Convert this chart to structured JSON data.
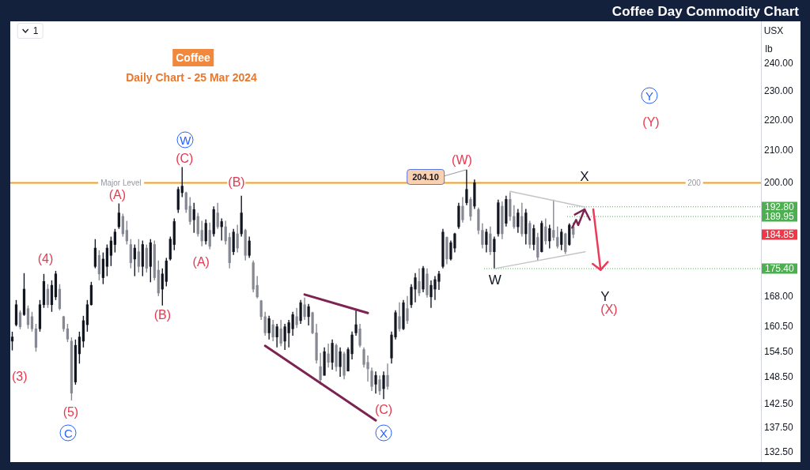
{
  "chart_data": {
    "type": "candlestick",
    "title": "Coffee Day Commodity Chart",
    "subtitle": "Daily Chart - 25 Mar 2024",
    "annotations": [
      "Coffee",
      "(3)",
      {
        "text": "(4)",
        "y": 174
      },
      {
        "text": "(5)",
        "y": 143.4
      },
      {
        "text": "C",
        "y": 143.4
      },
      {
        "text": "(A)",
        "y": 193.8
      },
      {
        "text": "(B)",
        "y": 165.8
      },
      {
        "text": "(C)",
        "y": 204.9
      },
      {
        "text": "W",
        "y": 204.9
      },
      {
        "text": "(A)",
        "y": 180.7
      },
      "(B)",
      {
        "text": "(C)",
        "y": 143.7
      },
      {
        "text": "X",
        "y": 143.7
      },
      "(W)",
      "204.10",
      {
        "text": "W",
        "y": 175.4
      },
      "X",
      "Y",
      "(X)",
      "Y",
      "(Y)",
      {
        "text": "200",
        "y": 200
      },
      "184.85",
      "USX",
      "lb",
      "1"
    ],
    "categories": [
      null,
      null,
      null,
      null,
      null,
      null,
      null,
      null,
      null,
      null,
      null,
      null,
      null,
      null,
      null,
      null,
      null,
      null,
      null,
      null,
      null,
      null,
      null,
      null,
      null,
      null,
      null,
      null,
      null,
      null,
      null,
      null,
      null,
      null,
      null,
      null,
      null,
      null,
      null,
      null,
      null,
      null,
      null,
      null,
      null,
      null,
      null,
      null,
      null,
      null,
      null,
      null,
      null,
      null,
      null,
      null,
      null,
      null,
      null,
      null,
      null,
      null,
      null,
      null,
      null,
      null,
      null,
      null,
      null,
      null,
      null,
      null,
      null,
      null,
      null,
      null,
      null,
      null,
      null,
      null,
      null,
      null,
      null,
      null,
      null,
      null,
      null,
      null,
      null,
      null,
      null,
      null,
      null,
      null,
      null,
      null,
      null,
      null,
      null,
      null,
      null,
      null,
      null,
      null,
      null,
      null,
      null,
      null,
      null,
      null,
      null,
      null,
      null,
      null,
      null,
      null,
      null,
      null,
      null,
      null,
      null,
      null,
      null,
      null,
      null,
      null,
      null,
      null,
      null,
      null,
      null,
      null,
      null,
      null,
      null,
      null,
      null,
      null,
      null,
      null,
      null,
      null,
      null,
      null,
      null,
      null,
      null,
      null,
      null,
      null,
      null,
      null,
      null,
      null,
      null,
      null,
      null,
      null,
      null,
      null,
      null,
      null,
      null,
      null,
      null,
      null,
      null,
      null,
      null,
      null,
      null,
      null,
      null,
      null,
      null,
      null,
      null,
      null,
      null,
      null,
      null,
      null,
      null,
      null,
      null,
      null,
      null,
      null,
      null,
      null
    ],
    "ohlc": [
      [
        157,
        159.3,
        154.8,
        158
      ],
      [
        161,
        167.2,
        160.6,
        166
      ],
      [
        164,
        164.6,
        159.9,
        160.5
      ],
      [
        163.5,
        174.2,
        163.2,
        170
      ],
      [
        165,
        165.8,
        160,
        161
      ],
      [
        163,
        164.2,
        159.3,
        160
      ],
      [
        160,
        161.2,
        154.5,
        155.5
      ],
      [
        160,
        167.2,
        159.3,
        166
      ],
      [
        166,
        174,
        165.2,
        172
      ],
      [
        170,
        171.3,
        165.2,
        166
      ],
      [
        166,
        172.3,
        164.2,
        171
      ],
      [
        168,
        174.8,
        167.2,
        174
      ],
      [
        170,
        171.3,
        164.6,
        165
      ],
      [
        163,
        163.2,
        159.3,
        160
      ],
      [
        160,
        161.2,
        156.8,
        157.5
      ],
      [
        157,
        157.9,
        143.4,
        145
      ],
      [
        147.5,
        157.4,
        146.9,
        156
      ],
      [
        154,
        159.3,
        151.7,
        158
      ],
      [
        157,
        163.2,
        155.5,
        162
      ],
      [
        161,
        167.2,
        159.3,
        166
      ],
      [
        166,
        171.9,
        165.8,
        171
      ],
      [
        176,
        183.5,
        175.5,
        181
      ],
      [
        179,
        180.4,
        172.3,
        174
      ],
      [
        173,
        179.8,
        171.3,
        178
      ],
      [
        176,
        182,
        173.4,
        181
      ],
      [
        179,
        184.2,
        176.1,
        183
      ],
      [
        182,
        186.4,
        179.8,
        185.5
      ],
      [
        187,
        193.8,
        186.4,
        191
      ],
      [
        190,
        190.8,
        184.2,
        185
      ],
      [
        186,
        188.7,
        182,
        183
      ],
      [
        182,
        183.5,
        175.5,
        177
      ],
      [
        178,
        182,
        173.4,
        181
      ],
      [
        180,
        183.5,
        174.4,
        176
      ],
      [
        176,
        183.1,
        173.4,
        182
      ],
      [
        181,
        182,
        174.4,
        175.5
      ],
      [
        176,
        183.5,
        171.8,
        182.5
      ],
      [
        182,
        183.1,
        172.3,
        173
      ],
      [
        175,
        177.6,
        168.2,
        169
      ],
      [
        170,
        175.5,
        165.8,
        174
      ],
      [
        172,
        178.3,
        170.7,
        177.5
      ],
      [
        178,
        184.2,
        177.6,
        183.5
      ],
      [
        182,
        189.4,
        180.4,
        188.5
      ],
      [
        192,
        198.8,
        191,
        198
      ],
      [
        197,
        204.9,
        195.7,
        199
      ],
      [
        197,
        197.3,
        191,
        192
      ],
      [
        193,
        195.7,
        187.6,
        188.5
      ],
      [
        189,
        194,
        185.3,
        192
      ],
      [
        190,
        191,
        184.2,
        185
      ],
      [
        186,
        188.7,
        181.5,
        183
      ],
      [
        183,
        189.1,
        182,
        188
      ],
      [
        186,
        188.2,
        180.7,
        181.5
      ],
      [
        185,
        192.9,
        184.2,
        192
      ],
      [
        191,
        194,
        186.4,
        187
      ],
      [
        187,
        189.4,
        183.1,
        188.5
      ],
      [
        187,
        188.7,
        182,
        183
      ],
      [
        184,
        185.3,
        175.5,
        177
      ],
      [
        180,
        186.4,
        179.1,
        185.5
      ],
      [
        185,
        187.6,
        179.8,
        181
      ],
      [
        185,
        196.1,
        184.2,
        191
      ],
      [
        186,
        186.4,
        177.6,
        179
      ],
      [
        179,
        184.2,
        178.3,
        183
      ],
      [
        177,
        177.6,
        169.2,
        170
      ],
      [
        171,
        173.4,
        167.6,
        168
      ],
      [
        167,
        167.2,
        162.2,
        163
      ],
      [
        163,
        164.2,
        158.3,
        159
      ],
      [
        159,
        163.2,
        157.4,
        162.5
      ],
      [
        161,
        162.2,
        157,
        158
      ],
      [
        158,
        161.2,
        155.5,
        160.5
      ],
      [
        160,
        162.2,
        155.8,
        156.5
      ],
      [
        157,
        161.2,
        154.9,
        160.5
      ],
      [
        159,
        162.2,
        155.5,
        161.5
      ],
      [
        160,
        164.2,
        158.3,
        163.5
      ],
      [
        163,
        165.2,
        160.2,
        161
      ],
      [
        162,
        167.2,
        161.2,
        166.5
      ],
      [
        166,
        167.8,
        162.2,
        163
      ],
      [
        163,
        166.2,
        160.8,
        165.5
      ],
      [
        164,
        164.2,
        158.7,
        159
      ],
      [
        159,
        161.2,
        151.7,
        152.5
      ],
      [
        151,
        154.2,
        146.9,
        148
      ],
      [
        149,
        155.5,
        149,
        154.5
      ],
      [
        154,
        156.4,
        150.8,
        152
      ],
      [
        152,
        157.4,
        150.3,
        156.5
      ],
      [
        156,
        156.4,
        149.9,
        151
      ],
      [
        151,
        155.5,
        148.7,
        154.5
      ],
      [
        154,
        154.5,
        148.1,
        149
      ],
      [
        150,
        155.5,
        149.9,
        155
      ],
      [
        154,
        159.3,
        152.7,
        158.5
      ],
      [
        159,
        164.6,
        158.3,
        161
      ],
      [
        160,
        161.2,
        155.5,
        156
      ],
      [
        155,
        155.5,
        150.8,
        151.5
      ],
      [
        152,
        153.6,
        147.6,
        150.5
      ],
      [
        150,
        150.8,
        145.5,
        146.5
      ],
      [
        147,
        149.9,
        144.9,
        149
      ],
      [
        148,
        149,
        144.6,
        145.5
      ],
      [
        146,
        149.9,
        143.7,
        149
      ],
      [
        149,
        151.7,
        145.8,
        146.5
      ],
      [
        153,
        159.3,
        151.7,
        158.5
      ],
      [
        158,
        164.6,
        157.4,
        164
      ],
      [
        163,
        166.6,
        159.3,
        160
      ],
      [
        160,
        167.2,
        159.7,
        166.5
      ],
      [
        165,
        168.2,
        161.2,
        162
      ],
      [
        166,
        171.3,
        165.2,
        170.5
      ],
      [
        170,
        174.2,
        166.6,
        173
      ],
      [
        172,
        175.5,
        168.2,
        169
      ],
      [
        170,
        176.1,
        169.2,
        175.5
      ],
      [
        174,
        175.5,
        167.8,
        168.5
      ],
      [
        168,
        172.3,
        165.2,
        171
      ],
      [
        170,
        173.4,
        167.2,
        172.5
      ],
      [
        172,
        174.8,
        169.8,
        174
      ],
      [
        176,
        186.4,
        175.5,
        185.5
      ],
      [
        184,
        184.2,
        176.6,
        178
      ],
      [
        178,
        183.1,
        177.6,
        182.5
      ],
      [
        181,
        185.3,
        179.8,
        185
      ],
      [
        187,
        194,
        186.4,
        193
      ],
      [
        193,
        195.7,
        188.2,
        189
      ],
      [
        194,
        204.1,
        193.3,
        198
      ],
      [
        195,
        195.7,
        188.7,
        190
      ],
      [
        193,
        201,
        192.2,
        200
      ],
      [
        192,
        192.6,
        184.9,
        186
      ],
      [
        186,
        188,
        180.9,
        182
      ],
      [
        182,
        186.4,
        179.8,
        185.5
      ],
      [
        185,
        187.1,
        179.1,
        180
      ],
      [
        180,
        184.2,
        175.4,
        183.5
      ],
      [
        185,
        194.9,
        184.2,
        194
      ],
      [
        193,
        194.4,
        183.5,
        185
      ],
      [
        188,
        196.1,
        187.1,
        195
      ],
      [
        195,
        197.1,
        188.7,
        190
      ],
      [
        190,
        193.3,
        186.4,
        187
      ],
      [
        187,
        192.2,
        185.3,
        191
      ],
      [
        190,
        194,
        184.2,
        185
      ],
      [
        185,
        192.2,
        182,
        191
      ],
      [
        188,
        188.7,
        180.9,
        182
      ],
      [
        182,
        187.6,
        180.4,
        186.5
      ],
      [
        184,
        185.3,
        177.6,
        178.5
      ],
      [
        180,
        188.7,
        179.8,
        188
      ],
      [
        187,
        189.4,
        182,
        183
      ],
      [
        183,
        187.6,
        180.9,
        186.5
      ],
      [
        186,
        194.9,
        183.1,
        184
      ],
      [
        184,
        187.1,
        180.9,
        181.5
      ],
      [
        182,
        186.4,
        180.4,
        185.5
      ],
      [
        185,
        185.3,
        179.4,
        180
      ],
      [
        182,
        188,
        181.7,
        187.5
      ],
      [
        187,
        188.2,
        183.8,
        184.85
      ],
      null,
      null,
      null,
      null,
      null,
      null,
      null,
      null,
      null,
      null,
      null,
      null,
      null,
      null,
      null,
      null,
      null,
      null,
      null,
      null,
      null,
      null,
      null,
      null,
      null,
      null,
      null,
      null,
      null,
      null,
      null,
      null,
      null,
      null,
      null,
      null,
      null,
      null,
      null,
      null,
      null,
      null,
      null,
      null,
      null,
      null,
      null
    ],
    "series": [
      {
        "type": "line",
        "color": "#7d2352",
        "values": [
          null,
          null,
          null,
          null,
          null,
          null,
          null,
          null,
          null,
          null,
          null,
          null,
          null,
          null,
          null,
          null,
          null,
          null,
          null,
          null,
          null,
          null,
          null,
          null,
          null,
          null,
          null,
          null,
          null,
          null,
          null,
          null,
          null,
          null,
          null,
          null,
          null,
          null,
          null,
          null,
          null,
          null,
          null,
          null,
          null,
          null,
          null,
          null,
          null,
          null,
          null,
          null,
          null,
          null,
          null,
          null,
          null,
          null,
          null,
          null,
          null,
          null,
          null,
          null,
          null,
          null,
          null,
          null,
          null,
          null,
          null,
          null,
          null,
          null,
          168.6,
          null,
          null,
          null,
          null,
          null,
          null,
          null,
          null,
          null,
          null,
          null,
          null,
          null,
          null,
          null,
          163.9,
          null,
          null,
          null,
          null,
          null,
          null,
          null,
          null,
          null,
          null,
          null,
          null,
          null,
          null,
          null,
          null,
          null,
          null,
          null,
          null,
          null,
          null,
          null,
          null,
          null,
          null,
          null,
          null,
          null,
          null,
          null,
          null,
          null,
          null,
          null,
          null,
          null,
          null,
          null,
          null,
          null,
          null,
          null,
          null,
          null,
          null,
          null,
          null,
          null,
          null,
          null,
          null,
          null,
          null,
          null,
          null,
          null,
          null,
          null,
          null,
          null,
          null,
          null,
          null,
          null,
          null,
          null,
          null,
          null,
          null,
          null,
          null,
          null,
          null,
          null,
          null,
          null,
          null,
          null,
          null,
          null,
          null,
          null,
          null,
          null,
          null,
          null,
          null,
          null,
          null,
          null,
          null,
          null,
          null,
          null,
          null,
          null,
          null,
          null
        ]
      },
      {
        "type": "line",
        "color": "#7d2352",
        "values": [
          null,
          null,
          null,
          null,
          null,
          null,
          null,
          null,
          null,
          null,
          null,
          null,
          null,
          null,
          null,
          null,
          null,
          null,
          null,
          null,
          null,
          null,
          null,
          null,
          null,
          null,
          null,
          null,
          null,
          null,
          null,
          null,
          null,
          null,
          null,
          null,
          null,
          null,
          null,
          null,
          null,
          null,
          null,
          null,
          null,
          null,
          null,
          null,
          null,
          null,
          null,
          null,
          null,
          null,
          null,
          null,
          null,
          null,
          null,
          null,
          null,
          null,
          null,
          null,
          155.9,
          null,
          null,
          null,
          null,
          null,
          null,
          null,
          null,
          null,
          null,
          null,
          null,
          null,
          null,
          null,
          null,
          null,
          null,
          null,
          null,
          null,
          null,
          null,
          null,
          null,
          null,
          null,
          139.1,
          null,
          null,
          null,
          null,
          null,
          null,
          null,
          null,
          null,
          null,
          null,
          null,
          null,
          null,
          null,
          null,
          null,
          null,
          null,
          null,
          null,
          null,
          null,
          null,
          null,
          null,
          null,
          null,
          null,
          null,
          null,
          null,
          null,
          null,
          null,
          null,
          null,
          null,
          null,
          null,
          null,
          null,
          null,
          null,
          null,
          null,
          null,
          null,
          null,
          null,
          null,
          null,
          null,
          null,
          null,
          null,
          null,
          null,
          null,
          null,
          null,
          null,
          null,
          null,
          null,
          null,
          null,
          null,
          null,
          null,
          null,
          null,
          null,
          null,
          null,
          null,
          null,
          null,
          null,
          null,
          null,
          null,
          null,
          null,
          null,
          null,
          null,
          null,
          null,
          null,
          null,
          null,
          null,
          null,
          null,
          null,
          null
        ]
      },
      {
        "type": "line",
        "color": "#c4c4c4",
        "values": [
          null,
          null,
          null,
          null,
          null,
          null,
          null,
          null,
          null,
          null,
          null,
          null,
          null,
          null,
          null,
          null,
          null,
          null,
          null,
          null,
          null,
          null,
          null,
          null,
          null,
          null,
          null,
          null,
          null,
          null,
          null,
          null,
          null,
          null,
          null,
          null,
          null,
          null,
          null,
          null,
          null,
          null,
          null,
          null,
          null,
          null,
          null,
          null,
          null,
          null,
          null,
          null,
          null,
          null,
          null,
          null,
          null,
          null,
          null,
          null,
          null,
          null,
          null,
          null,
          null,
          null,
          null,
          null,
          null,
          null,
          null,
          null,
          null,
          null,
          null,
          null,
          null,
          null,
          null,
          null,
          null,
          null,
          null,
          null,
          null,
          null,
          null,
          null,
          null,
          null,
          null,
          null,
          null,
          null,
          null,
          null,
          null,
          null,
          null,
          null,
          null,
          null,
          null,
          null,
          null,
          null,
          null,
          null,
          null,
          null,
          null,
          null,
          null,
          null,
          null,
          null,
          null,
          null,
          null,
          null,
          null,
          null,
          null,
          null,
          null,
          null,
          197.4,
          null,
          null,
          null,
          null,
          null,
          null,
          null,
          null,
          null,
          null,
          null,
          null,
          null,
          null,
          null,
          null,
          null,
          null,
          192.7,
          null,
          null,
          null,
          null,
          null,
          null,
          null,
          null,
          null,
          null,
          null,
          null,
          null,
          null,
          null,
          null,
          null,
          null,
          null,
          null,
          null,
          null,
          null,
          null,
          null,
          null,
          null,
          null,
          null,
          null,
          null,
          null,
          null,
          null,
          null,
          null,
          null,
          null,
          null,
          null,
          null,
          null,
          null,
          null
        ]
      },
      {
        "type": "line",
        "color": "#c4c4c4",
        "values": [
          null,
          null,
          null,
          null,
          null,
          null,
          null,
          null,
          null,
          null,
          null,
          null,
          null,
          null,
          null,
          null,
          null,
          null,
          null,
          null,
          null,
          null,
          null,
          null,
          null,
          null,
          null,
          null,
          null,
          null,
          null,
          null,
          null,
          null,
          null,
          null,
          null,
          null,
          null,
          null,
          null,
          null,
          null,
          null,
          null,
          null,
          null,
          null,
          null,
          null,
          null,
          null,
          null,
          null,
          null,
          null,
          null,
          null,
          null,
          null,
          null,
          null,
          null,
          null,
          null,
          null,
          null,
          null,
          null,
          null,
          null,
          null,
          null,
          null,
          null,
          null,
          null,
          null,
          null,
          null,
          null,
          null,
          null,
          null,
          null,
          null,
          null,
          null,
          null,
          null,
          null,
          null,
          null,
          null,
          null,
          null,
          null,
          null,
          null,
          null,
          null,
          null,
          null,
          null,
          null,
          null,
          null,
          null,
          null,
          null,
          null,
          null,
          null,
          null,
          null,
          null,
          null,
          null,
          null,
          null,
          null,
          null,
          175.4,
          null,
          null,
          null,
          null,
          null,
          null,
          null,
          null,
          null,
          null,
          null,
          null,
          null,
          null,
          null,
          null,
          null,
          null,
          null,
          null,
          null,
          null,
          180.0,
          null,
          null,
          null,
          null,
          null,
          null,
          null,
          null,
          null,
          null,
          null,
          null,
          null,
          null,
          null,
          null,
          null,
          null,
          null,
          null,
          null,
          null,
          null,
          null,
          null,
          null,
          null,
          null,
          null,
          null,
          null,
          null,
          null,
          null,
          null,
          null,
          null,
          null,
          null,
          null,
          null,
          null,
          null,
          null
        ]
      }
    ],
    "ylim": [
      130.5,
      256
    ],
    "yticks": [
      {
        "value": 240,
        "label": "240.00"
      },
      {
        "value": 230,
        "label": "230.00"
      },
      {
        "value": 220,
        "label": "220.00"
      },
      {
        "value": 210,
        "label": "210.00"
      },
      {
        "value": 200,
        "label": "200.00"
      },
      {
        "value": 168,
        "label": "168.00"
      },
      {
        "value": 160.5,
        "label": "160.50"
      },
      {
        "value": 154.5,
        "label": "154.50"
      },
      {
        "value": 148.5,
        "label": "148.50"
      },
      {
        "value": 142.5,
        "label": "142.50"
      },
      {
        "value": 137.5,
        "label": "137.50"
      },
      {
        "value": 132.5,
        "label": "132.50"
      }
    ],
    "log": true,
    "tick_labels": "y",
    "ref_lines": [
      {
        "axis": "y",
        "value": 200,
        "label": "Major Level",
        "color": "#f5a01a"
      },
      {
        "axis": "y",
        "value": 192.8,
        "label": "192.80",
        "color": "#4caf50",
        "line_style": "dotted"
      },
      {
        "axis": "y",
        "value": 189.95,
        "label": "189.95",
        "color": "#4caf50",
        "line_style": "dotted"
      },
      {
        "axis": "y",
        "value": 175.4,
        "label": "175.40",
        "color": "#4caf50",
        "line_style": "dotted"
      }
    ]
  }
}
